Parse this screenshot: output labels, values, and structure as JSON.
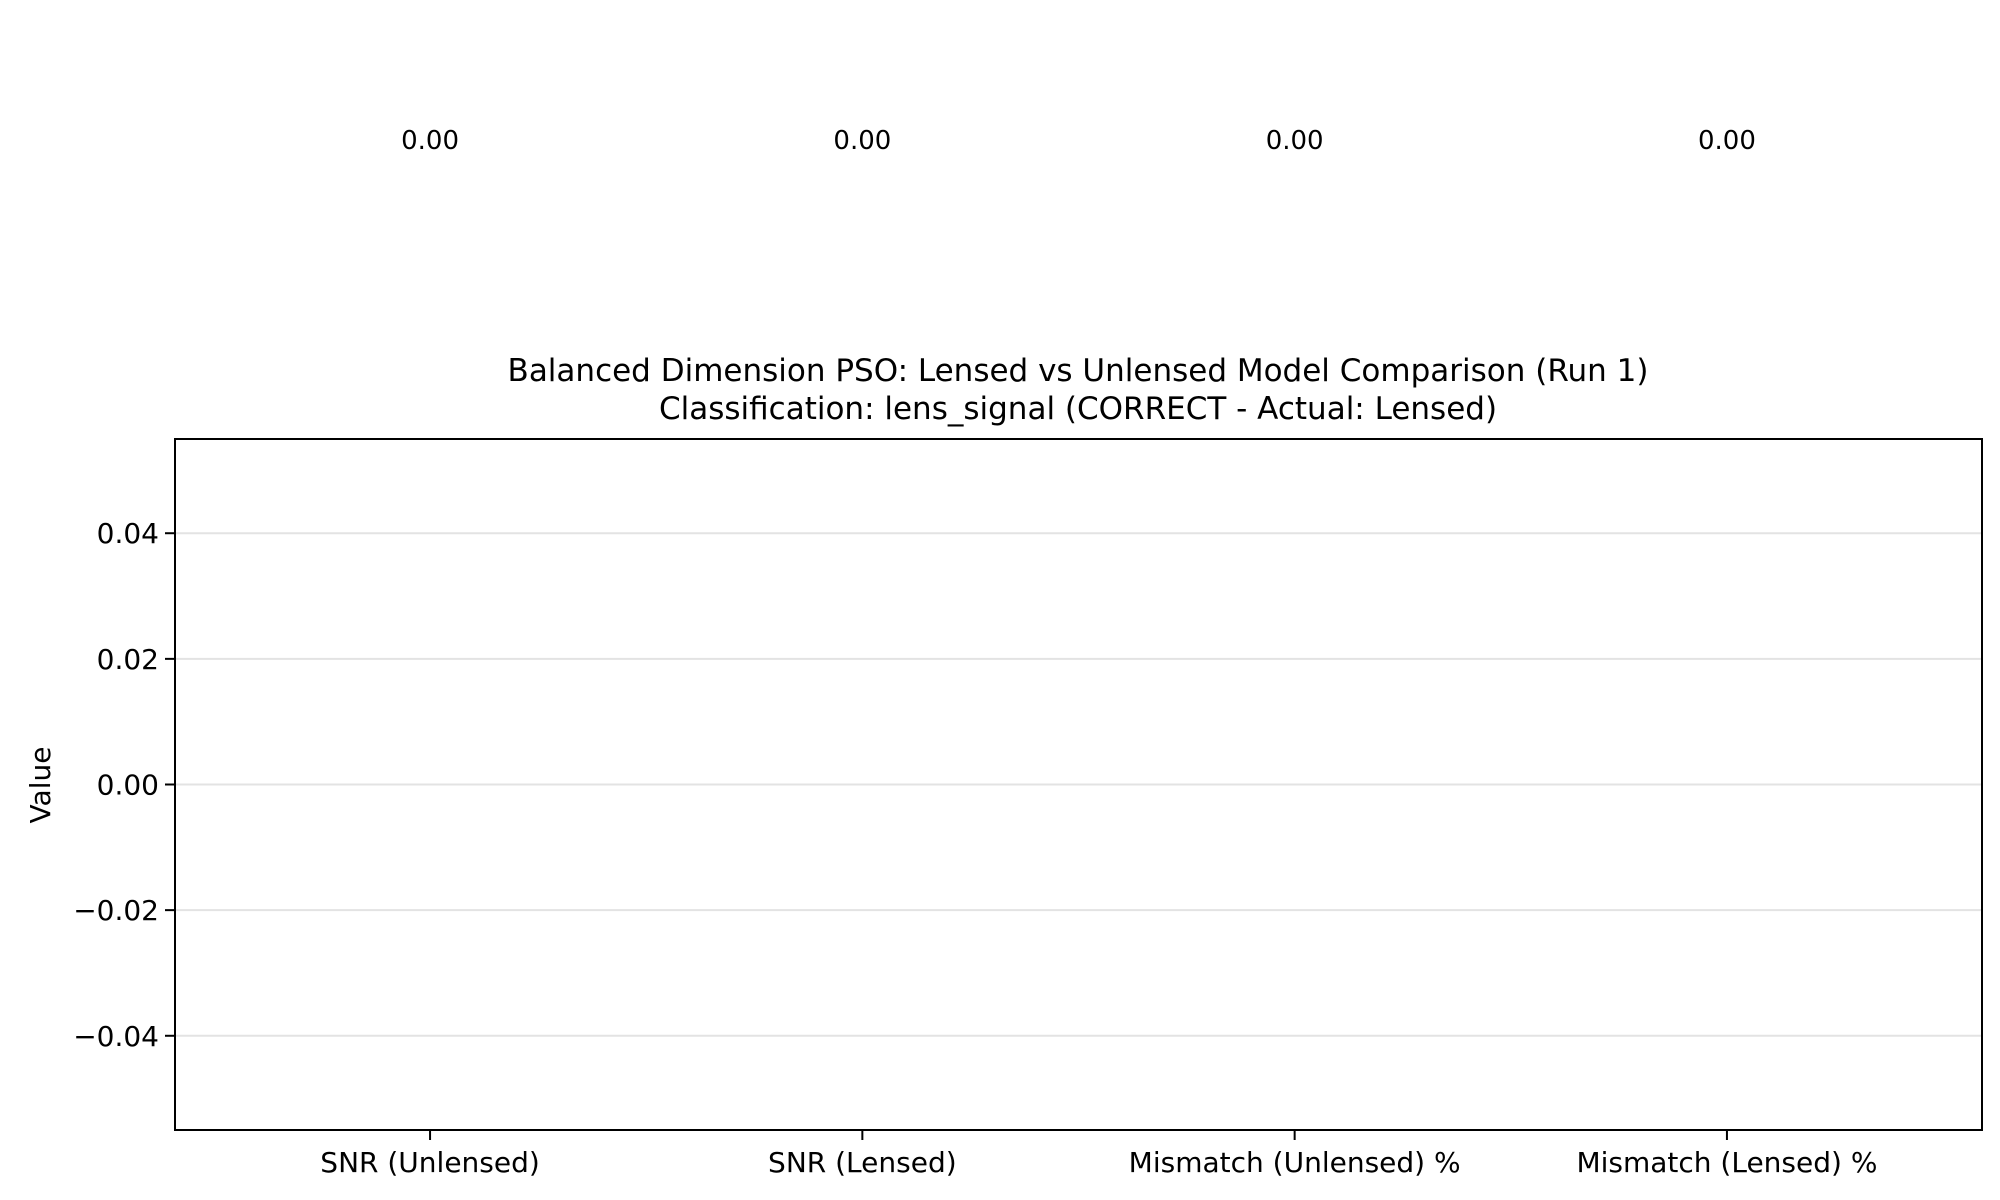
{
  "chart_data": {
    "type": "bar",
    "title": "Balanced Dimension PSO: Lensed vs Unlensed Model Comparison (Run 1)",
    "subtitle": "Classification: lens_signal (CORRECT - Actual: Lensed)",
    "xlabel": "",
    "ylabel": "Value",
    "categories": [
      "SNR (Unlensed)",
      "SNR (Lensed)",
      "Mismatch (Unlensed) %",
      "Mismatch (Lensed) %"
    ],
    "values": [
      0,
      0,
      0,
      0
    ],
    "data_labels": [
      "0.00",
      "0.00",
      "0.00",
      "0.00"
    ],
    "ylim": [
      -0.055,
      0.055
    ],
    "yticks": [
      -0.04,
      -0.02,
      0.0,
      0.02,
      0.04
    ],
    "ytick_labels": [
      "−0.04",
      "−0.02",
      "0.00",
      "0.02",
      "0.04"
    ],
    "grid": "y",
    "legend": "none"
  }
}
